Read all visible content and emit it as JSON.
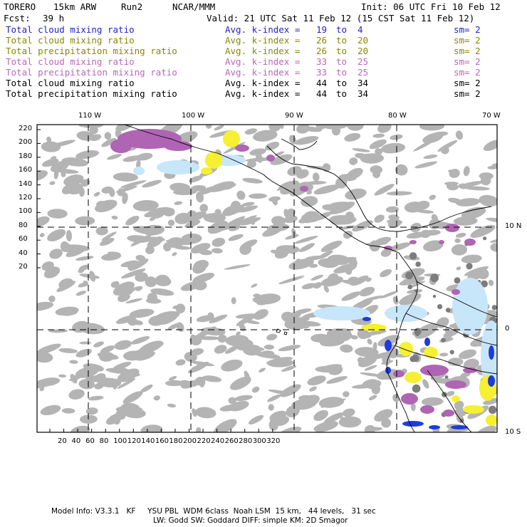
{
  "header": {
    "model": "TORERO",
    "resolution": "15km ARW",
    "run": "Run2",
    "org": "NCAR/MMM",
    "init": "Init: 06 UTC Fri 10 Feb 12",
    "fcst_label": "Fcst:",
    "fcst_value": "39 h",
    "valid": "Valid: 21 UTC Sat 11 Feb 12 (15 CST Sat 11 Feb 12)"
  },
  "legend_rows": [
    {
      "field": "Total cloud mixing ratio",
      "avg": "Avg. k-index =",
      "k1": "19",
      "to": "to",
      "k2": "4",
      "sm": "sm= 2",
      "color": "#2222cc"
    },
    {
      "field": "Total cloud mixing ratio",
      "avg": "Avg. k-index =",
      "k1": "26",
      "to": "to",
      "k2": "20",
      "sm": "sm= 2",
      "color": "#888800"
    },
    {
      "field": "Total precipitation mixing ratio",
      "avg": "Avg. k-index =",
      "k1": "26",
      "to": "to",
      "k2": "20",
      "sm": "sm= 2",
      "color": "#888800"
    },
    {
      "field": "Total cloud mixing ratio",
      "avg": "Avg. k-index =",
      "k1": "33",
      "to": "to",
      "k2": "25",
      "sm": "sm= 2",
      "color": "#bb66bb"
    },
    {
      "field": "Total precipitation mixing ratio",
      "avg": "Avg. k-index =",
      "k1": "33",
      "to": "to",
      "k2": "25",
      "sm": "sm= 2",
      "color": "#bb66bb"
    },
    {
      "field": "Total cloud mixing ratio",
      "avg": "Avg. k-index =",
      "k1": "44",
      "to": "to",
      "k2": "34",
      "sm": "sm= 2",
      "color": "#000000"
    },
    {
      "field": "Total precipitation mixing ratio",
      "avg": "Avg. k-index =",
      "k1": "44",
      "to": "to",
      "k2": "34",
      "sm": "sm= 2",
      "color": "#000000"
    }
  ],
  "axes": {
    "top_lon": [
      "110 W",
      "100 W",
      "90 W",
      "80 W",
      "70 W"
    ],
    "right_lat": [
      "10 N",
      "0",
      "10 S"
    ],
    "left_y": [
      "220",
      "200",
      "180",
      "160",
      "140",
      "120",
      "100",
      "80",
      "60",
      "40",
      "20"
    ],
    "bottom_x": [
      "20",
      "40",
      "60",
      "80",
      "100",
      "120",
      "140",
      "160",
      "180",
      "200",
      "220",
      "240",
      "260",
      "280",
      "300",
      "320"
    ]
  },
  "footer": {
    "line1": "Model Info: V3.3.1   KF     YSU PBL  WDM 6class  Noah LSM  15 km,   44 levels,   31 sec",
    "line2": "LW: Godd SW: Goddard DIFF: simple KM: 2D Smagor"
  },
  "colors": {
    "cloud_gray": "#b4b4b4",
    "cloud_dark": "#7d7d7d",
    "light_blue": "#c8e6fa",
    "blue": "#1e3cdc",
    "yellow": "#f5f032",
    "purple": "#b064b4",
    "coast": "#000000",
    "grid": "#000000"
  }
}
